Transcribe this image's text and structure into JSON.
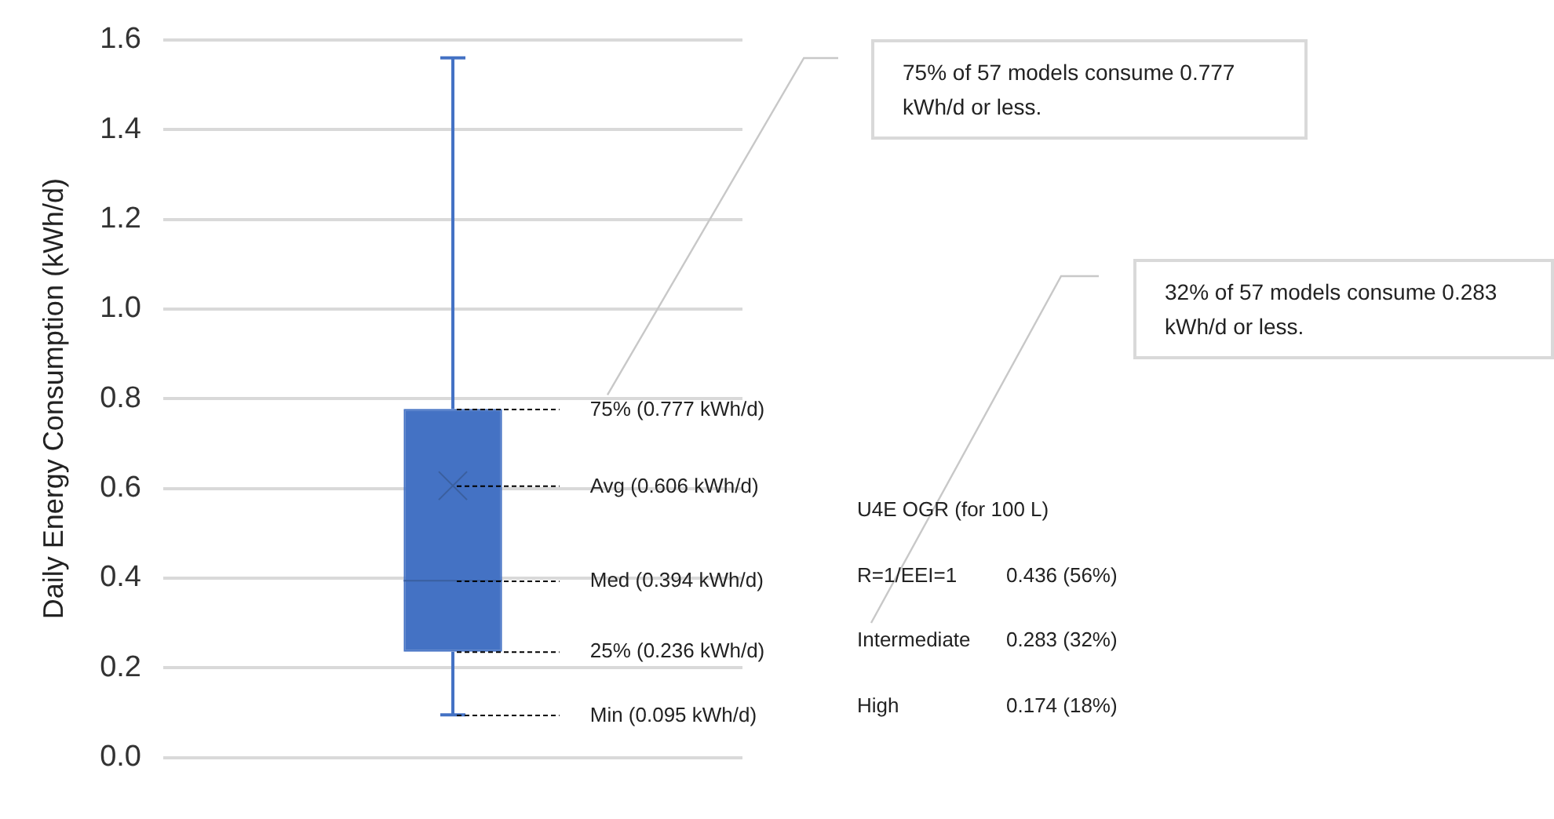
{
  "chart_data": {
    "type": "box",
    "ylabel": "Daily Energy Consumption (kWh/d)",
    "categories": [
      null
    ],
    "color": "#4472c4",
    "boxes": [
      {
        "low": 0.095,
        "q1": 0.236,
        "median": 0.394,
        "q3": 0.777,
        "high": 1.56,
        "mean": 0.606
      }
    ],
    "ylim": [
      0,
      1.6
    ],
    "yticks": [
      {
        "value": 0,
        "label": "0.0"
      },
      0.2,
      0.4,
      0.6,
      0.8,
      {
        "value": 1,
        "label": "1.0"
      },
      1.2,
      1.4,
      1.6
    ],
    "grid": "y",
    "legend": false,
    "annotations": [
      "75% (0.777 kWh/d)",
      "Avg (0.606 kWh/d)",
      "Med (0.394 kWh/d)",
      "25% (0.236 kWh/d)",
      "Min (0.095 kWh/d)",
      "75% of 57 models consume 0.777 kWh/d or less.",
      "32% of 57 models consume 0.283 kWh/d or less.",
      "U4E OGR (for 100 L)",
      "R=1/EEI=1",
      "0.436 (56%)",
      "Intermediate",
      "0.283 (32%)",
      "High",
      "0.174 (18%)"
    ]
  }
}
